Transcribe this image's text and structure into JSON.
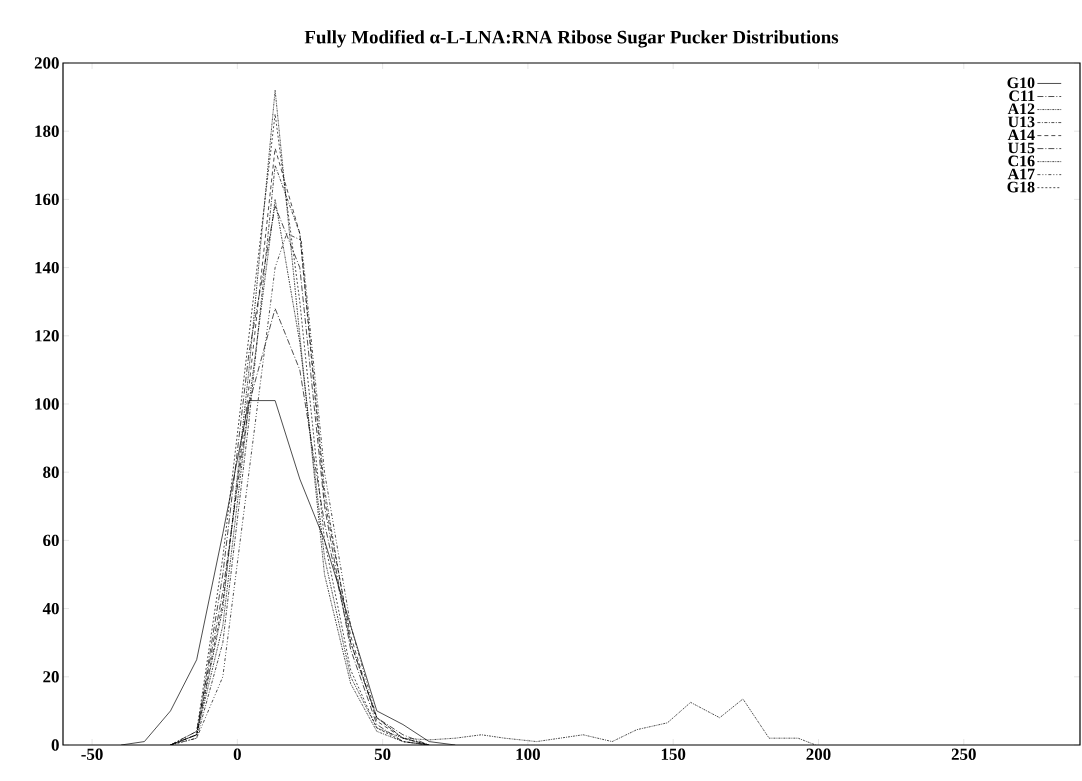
{
  "chart_data": {
    "type": "line",
    "title": "Fully Modified α-L-LNA:RNA Ribose Sugar Pucker Distributions",
    "xlim": [
      -60,
      290
    ],
    "ylim": [
      0,
      200
    ],
    "xticks": [
      -50,
      0,
      50,
      100,
      150,
      200,
      250
    ],
    "yticks": [
      0,
      20,
      40,
      60,
      80,
      100,
      120,
      140,
      160,
      180,
      200
    ],
    "grid": false,
    "legend": "top right",
    "marker": "none",
    "series": [
      {
        "name": "G10",
        "color": "#000000",
        "line_style": "solid",
        "x": [
          -40,
          -32,
          -23,
          -14,
          -5,
          4,
          13,
          21.5,
          30,
          39,
          48,
          57,
          66,
          75
        ],
        "values": [
          0,
          1,
          10,
          25,
          62,
          101,
          101,
          78,
          60,
          35,
          10,
          6,
          1,
          0
        ]
      },
      {
        "name": "C11",
        "color": "#000000",
        "line_style": "dashed",
        "x": [
          -23,
          -14,
          -5,
          4,
          13,
          21.5,
          30,
          39,
          48,
          57,
          66
        ],
        "values": [
          0,
          4,
          45,
          100,
          128,
          110,
          65,
          30,
          8,
          3,
          0
        ]
      },
      {
        "name": "A12",
        "color": "#000000",
        "line_style": "dotted",
        "x": [
          -23,
          -14,
          -5,
          4,
          13,
          21.5,
          30,
          39,
          48,
          57,
          66
        ],
        "values": [
          0,
          3,
          40,
          110,
          192,
          120,
          50,
          18,
          4,
          1,
          0
        ]
      },
      {
        "name": "U13",
        "color": "#000000",
        "line_style": "dotted",
        "x": [
          -23,
          -14,
          -5,
          4,
          13,
          21.5,
          30,
          39,
          48,
          57,
          66
        ],
        "values": [
          0,
          2,
          30,
          95,
          170,
          150,
          75,
          30,
          8,
          2,
          0
        ]
      },
      {
        "name": "A14",
        "color": "#000000",
        "line_style": "dashed",
        "x": [
          -23,
          -14,
          -5,
          4,
          13,
          21.5,
          30,
          39,
          48,
          57,
          66
        ],
        "values": [
          0,
          3,
          42,
          105,
          175,
          150,
          72,
          32,
          7,
          2,
          0
        ]
      },
      {
        "name": "U15",
        "color": "#000000",
        "line_style": "dashed",
        "x": [
          -23,
          -14,
          -5,
          4,
          13,
          21.5,
          30,
          39,
          48,
          57,
          66
        ],
        "values": [
          0,
          3,
          50,
          115,
          158,
          140,
          70,
          28,
          6,
          1,
          0
        ]
      },
      {
        "name": "C16",
        "color": "#000000",
        "line_style": "dotted",
        "x": [
          -23,
          -14,
          -5,
          4,
          13,
          21.5,
          30,
          39,
          48,
          57,
          66,
          75,
          84,
          92,
          103,
          119,
          129,
          137.5,
          148,
          156,
          166,
          174,
          183,
          193,
          199
        ],
        "values": [
          0,
          3,
          35,
          100,
          160,
          118,
          55,
          20,
          5,
          2,
          1.5,
          2,
          3,
          2,
          1,
          3,
          1,
          4.5,
          6.5,
          12.5,
          8,
          13.5,
          2,
          2,
          0
        ]
      },
      {
        "name": "A17",
        "color": "#000000",
        "line_style": "dashed",
        "x": [
          -23,
          -14,
          -5,
          4,
          13,
          17,
          22,
          30,
          39,
          48,
          57,
          66
        ],
        "values": [
          0,
          2,
          20,
          80,
          140,
          150,
          148,
          80,
          35,
          8,
          2,
          0
        ]
      },
      {
        "name": "G18",
        "color": "#000000",
        "line_style": "dotted",
        "x": [
          -23,
          -14,
          -5,
          4,
          13,
          21.5,
          30,
          39,
          48,
          57,
          66
        ],
        "values": [
          0,
          4,
          55,
          120,
          185,
          130,
          60,
          22,
          5,
          1,
          0
        ]
      }
    ]
  }
}
